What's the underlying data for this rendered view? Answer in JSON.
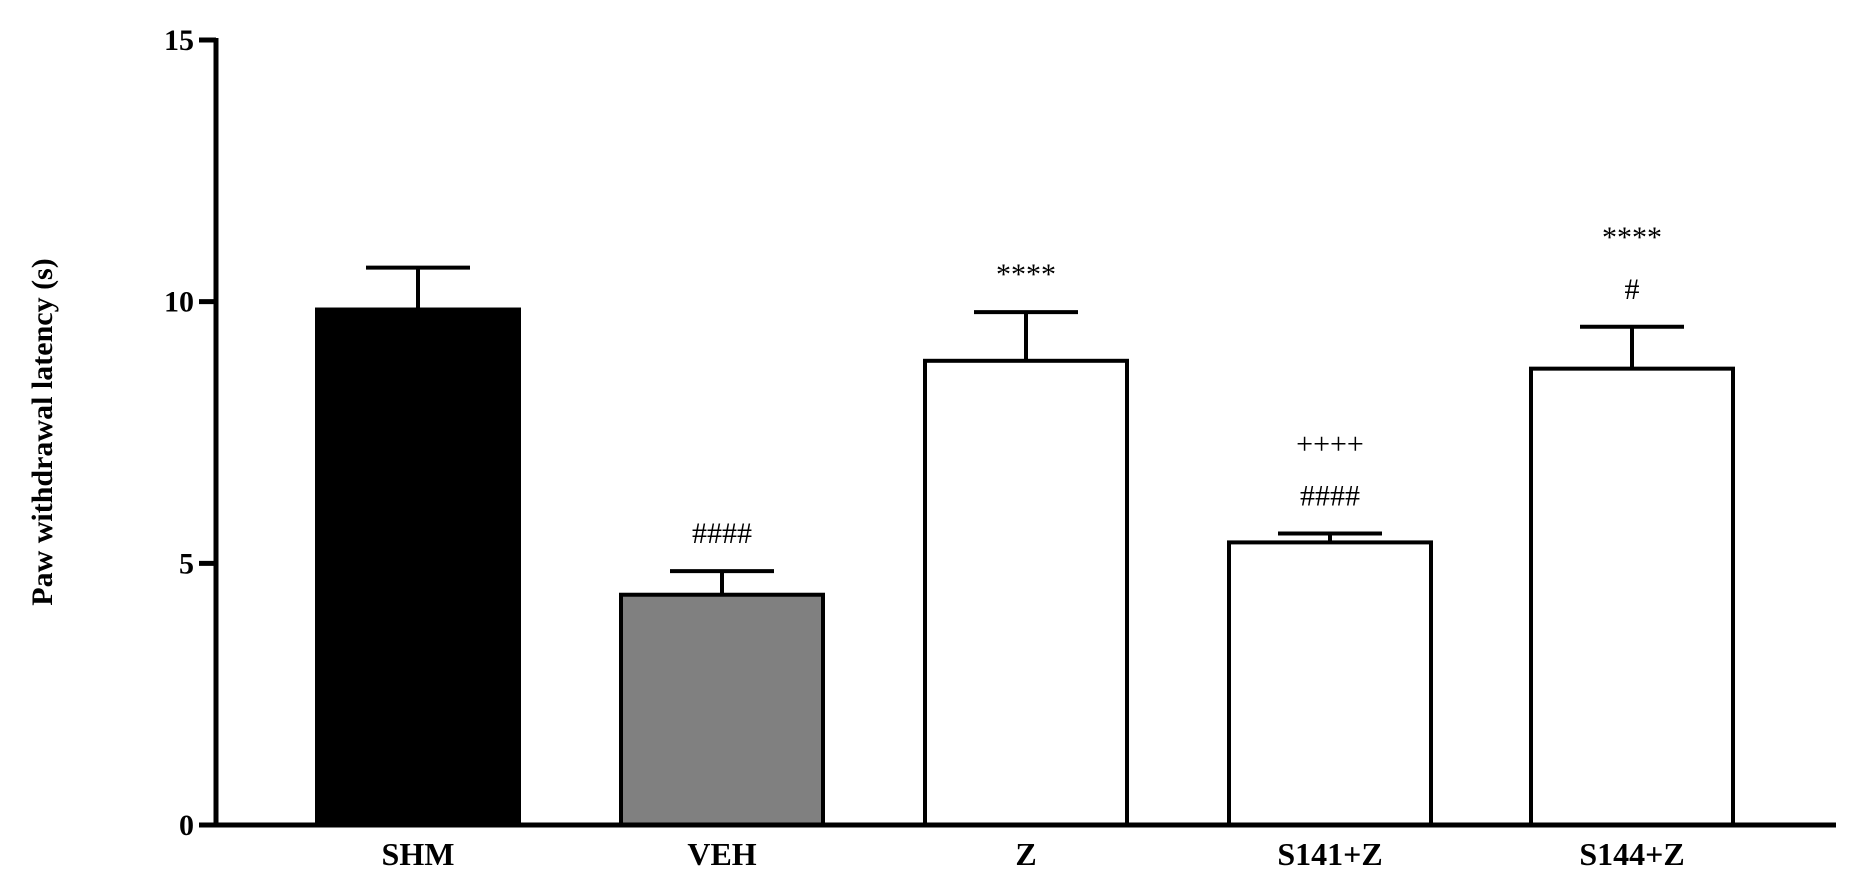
{
  "chart_data": {
    "type": "bar",
    "categories": [
      "SHM",
      "VEH",
      "Z",
      "S141+Z",
      "S144+Z"
    ],
    "values": [
      9.85,
      4.4,
      8.87,
      5.4,
      8.72
    ],
    "errors": [
      0.8,
      0.45,
      0.93,
      0.17,
      0.8
    ],
    "bar_colors": [
      "#000000",
      "#808080",
      "#ffffff",
      "#ffffff",
      "#ffffff"
    ],
    "annotations": [
      [],
      [
        "####"
      ],
      [
        "****"
      ],
      [
        "####",
        "++++"
      ],
      [
        "#",
        "****"
      ]
    ],
    "ylabel": "Paw withdrawal latency (s)",
    "xlabel": "",
    "ylim": [
      0,
      15
    ],
    "yticks": [
      0,
      5,
      10,
      15
    ],
    "grid": false
  }
}
